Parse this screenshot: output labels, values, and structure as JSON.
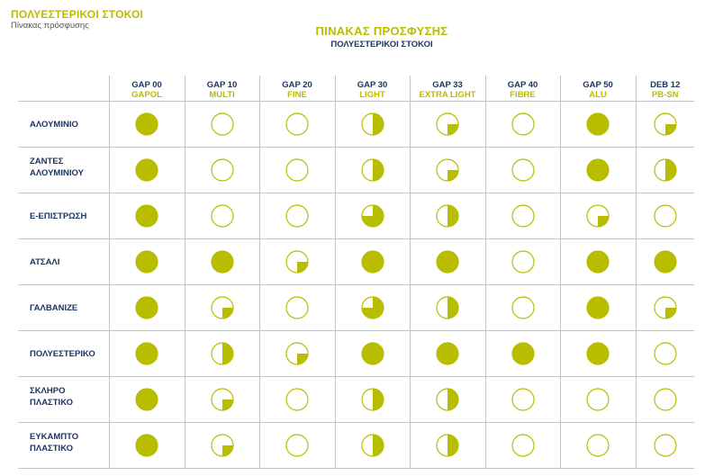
{
  "header": {
    "title": "ΠΟΛΥΕΣΤΕΡΙΚΟΙ ΣΤΟΚΟΙ",
    "subtitle": "Πίνακας πρόσφυσης"
  },
  "main": {
    "title": "ΠΙΝΑΚΑΣ ΠΡΟΣΦΥΣΗΣ",
    "subtitle": "ΠΟΛΥΕΣΤΕΡΙΚΟΙ ΣΤΟΚΟΙ"
  },
  "colors": {
    "accent": "#b8bd00",
    "navy": "#1c3560",
    "grid": "#c4c4c4"
  },
  "columns": [
    {
      "code": "GAP 00",
      "name": "GAPOL"
    },
    {
      "code": "GAP 10",
      "name": "MULTI"
    },
    {
      "code": "GAP 20",
      "name": "FINE"
    },
    {
      "code": "GAP 30",
      "name": "LIGHT"
    },
    {
      "code": "GAP 33",
      "name": "EXTRA LIGHT"
    },
    {
      "code": "GAP 40",
      "name": "FIBRE"
    },
    {
      "code": "GAP 50",
      "name": "ALU"
    },
    {
      "code": "DEB 12",
      "name": "PB-SN"
    }
  ],
  "rows": [
    {
      "line1": "ΑΛΟΥΜΙΝΙΟ",
      "line2": "",
      "levels": [
        1,
        0,
        0,
        0.5,
        0.25,
        0,
        1,
        0.25
      ]
    },
    {
      "line1": "ΖΑΝΤΕΣ",
      "line2": "ΑΛΟΥΜΙΝΙΟΥ",
      "levels": [
        1,
        0,
        0,
        0.5,
        0.25,
        0,
        1,
        0.5
      ]
    },
    {
      "line1": "Ε-ΕΠΙΣΤΡΩΣΗ",
      "line2": "",
      "levels": [
        1,
        0,
        0,
        0.75,
        0.5,
        0,
        0.25,
        0
      ]
    },
    {
      "line1": "ΑΤΣΑΛΙ",
      "line2": "",
      "levels": [
        1,
        1,
        0.25,
        1,
        1,
        0,
        1,
        1
      ]
    },
    {
      "line1": "ΓΑΛΒΑΝΙΖΕ",
      "line2": "",
      "levels": [
        1,
        0.25,
        0,
        0.75,
        0.5,
        0,
        1,
        0.25
      ]
    },
    {
      "line1": "ΠΟΛΥΕΣΤΕΡΙΚΟ",
      "line2": "",
      "levels": [
        1,
        0.5,
        0.25,
        1,
        1,
        1,
        1,
        0
      ]
    },
    {
      "line1": "ΣΚΛΗΡΟ",
      "line2": "ΠΛΑΣΤΙΚΟ",
      "levels": [
        1,
        0.25,
        0,
        0.5,
        0.5,
        0,
        0,
        0
      ]
    },
    {
      "line1": "ΕΥΚΑΜΠΤΟ",
      "line2": "ΠΛΑΣΤΙΚΟ",
      "levels": [
        1,
        0.25,
        0,
        0.5,
        0.5,
        0,
        0,
        0
      ]
    }
  ]
}
